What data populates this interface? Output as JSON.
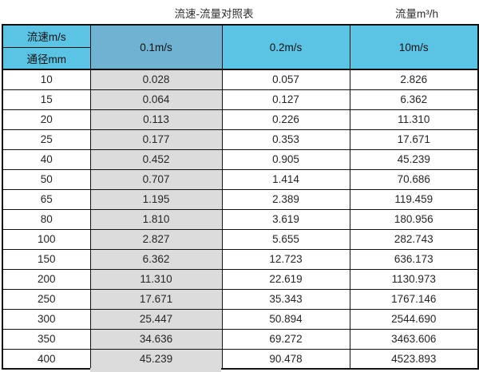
{
  "titles": {
    "main": "流速-流量对照表",
    "right": "流量m³/h"
  },
  "table": {
    "corner": {
      "top": "流速m/s",
      "bottom": "通径mm"
    },
    "velocity_headers": [
      "0.1m/s",
      "0.2m/s",
      "10m/s"
    ],
    "rows": [
      [
        "10",
        "0.028",
        "0.057",
        "2.826"
      ],
      [
        "15",
        "0.064",
        "0.127",
        "6.362"
      ],
      [
        "20",
        "0.113",
        "0.226",
        "11.310"
      ],
      [
        "25",
        "0.177",
        "0.353",
        "17.671"
      ],
      [
        "40",
        "0.452",
        "0.905",
        "45.239"
      ],
      [
        "50",
        "0.707",
        "1.414",
        "70.686"
      ],
      [
        "65",
        "1.195",
        "2.389",
        "119.459"
      ],
      [
        "80",
        "1.810",
        "3.619",
        "180.956"
      ],
      [
        "100",
        "2.827",
        "5.655",
        "282.743"
      ],
      [
        "150",
        "6.362",
        "12.723",
        "636.173"
      ],
      [
        "200",
        "11.310",
        "22.619",
        "1130.973"
      ],
      [
        "250",
        "17.671",
        "35.343",
        "1767.146"
      ],
      [
        "300",
        "25.447",
        "50.894",
        "2544.690"
      ],
      [
        "350",
        "34.636",
        "69.272",
        "3463.606"
      ],
      [
        "400",
        "45.239",
        "90.478",
        "4523.893"
      ]
    ]
  },
  "colors": {
    "header_light_blue": "#5bc4e4",
    "header_dark_blue": "#6fb2d2",
    "gray_cell": "#dcdcdc",
    "border": "#111111"
  },
  "chart_data": {
    "type": "table",
    "title": "流速-流量对照表",
    "unit_label": "流量m³/h",
    "row_axis_label": "通径mm",
    "col_axis_label": "流速m/s",
    "columns": [
      "0.1m/s",
      "0.2m/s",
      "10m/s"
    ],
    "diameters_mm": [
      10,
      15,
      20,
      25,
      40,
      50,
      65,
      80,
      100,
      150,
      200,
      250,
      300,
      350,
      400
    ],
    "series": [
      {
        "name": "0.1m/s",
        "values": [
          0.028,
          0.064,
          0.113,
          0.177,
          0.452,
          0.707,
          1.195,
          1.81,
          2.827,
          6.362,
          11.31,
          17.671,
          25.447,
          34.636,
          45.239
        ]
      },
      {
        "name": "0.2m/s",
        "values": [
          0.057,
          0.127,
          0.226,
          0.353,
          0.905,
          1.414,
          2.389,
          3.619,
          5.655,
          12.723,
          22.619,
          35.343,
          50.894,
          69.272,
          90.478
        ]
      },
      {
        "name": "10m/s",
        "values": [
          2.826,
          6.362,
          11.31,
          17.671,
          45.239,
          70.686,
          119.459,
          180.956,
          282.743,
          636.173,
          1130.973,
          1767.146,
          2544.69,
          3463.606,
          4523.893
        ]
      }
    ]
  }
}
